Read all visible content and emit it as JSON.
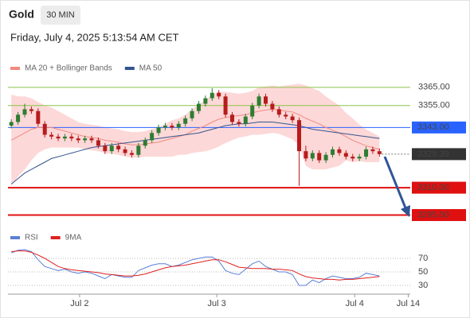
{
  "header": {
    "symbol": "Gold",
    "interval": "30 MIN",
    "timestamp": "Friday, July 4, 2025 5:13:54 AM CET"
  },
  "chart_data": [
    {
      "type": "candlestick",
      "x": [
        0,
        1,
        2,
        3,
        4,
        5,
        6,
        7,
        8,
        9,
        10,
        11,
        12,
        13,
        14,
        15,
        16,
        17,
        18,
        19,
        20,
        21,
        22,
        23,
        24,
        25,
        26,
        27,
        28,
        29,
        30,
        31,
        32,
        33,
        34,
        35,
        36,
        37,
        38,
        39,
        40,
        41,
        42,
        43,
        44,
        45,
        46,
        47,
        48,
        49,
        50,
        51,
        52,
        53,
        54,
        55
      ],
      "open": [
        3344,
        3346,
        3350,
        3353,
        3352,
        3345,
        3339,
        3338,
        3337,
        3338,
        3337,
        3336,
        3337,
        3336,
        3333,
        3330,
        3333,
        3331,
        3329,
        3328,
        3333,
        3336,
        3340,
        3343,
        3344,
        3343,
        3345,
        3348,
        3352,
        3356,
        3359,
        3362,
        3360,
        3350,
        3346,
        3345,
        3349,
        3355,
        3360,
        3356,
        3353,
        3350,
        3349,
        3347,
        3330,
        3326,
        3329,
        3325,
        3328,
        3331,
        3329,
        3327,
        3326,
        3327,
        3331,
        3330
      ],
      "high": [
        3347.5,
        3351.5,
        3356,
        3354.5,
        3353.5,
        3346.5,
        3340.5,
        3339.5,
        3339.5,
        3339.5,
        3338.5,
        3338.5,
        3338.5,
        3337.5,
        3334.5,
        3334.5,
        3334.5,
        3332.5,
        3330.5,
        3334.5,
        3337.5,
        3341.5,
        3344.5,
        3345.5,
        3345.5,
        3346.5,
        3349.5,
        3353.5,
        3357.5,
        3360.5,
        3364.5,
        3363.5,
        3361.5,
        3351.5,
        3347.5,
        3350.5,
        3356.5,
        3361.5,
        3361.5,
        3357.5,
        3354.5,
        3351.5,
        3350.5,
        3348.5,
        3333,
        3330.5,
        3330.5,
        3329.5,
        3332.5,
        3332.5,
        3330.5,
        3328.5,
        3328.5,
        3332.5,
        3332.5,
        3331.5
      ],
      "low": [
        3342.5,
        3344.5,
        3348.5,
        3350.5,
        3343.5,
        3337.5,
        3336.5,
        3335.5,
        3335.5,
        3335.5,
        3334.5,
        3334.5,
        3334.5,
        3331.5,
        3328.5,
        3328.5,
        3329.5,
        3327.5,
        3326.5,
        3326.5,
        3331.5,
        3334.5,
        3338.5,
        3341.5,
        3341.5,
        3341.5,
        3343.5,
        3346.5,
        3350.5,
        3354.5,
        3357.5,
        3358.5,
        3348.5,
        3344.5,
        3343.5,
        3343.5,
        3347.5,
        3353.5,
        3354.5,
        3351.5,
        3348.5,
        3347.5,
        3345.5,
        3311,
        3324.5,
        3324.5,
        3323.5,
        3323.5,
        3326.5,
        3327.5,
        3325.5,
        3324.5,
        3324.5,
        3325.5,
        3328.5,
        3327
      ],
      "close": [
        3346,
        3350,
        3353,
        3352,
        3345,
        3339,
        3338,
        3337,
        3338,
        3337,
        3336,
        3337,
        3336,
        3333,
        3330,
        3333,
        3331,
        3329,
        3328,
        3333,
        3336,
        3340,
        3343,
        3344,
        3343,
        3345,
        3348,
        3352,
        3356,
        3359,
        3362,
        3360,
        3350,
        3346,
        3345,
        3349,
        3355,
        3360,
        3356,
        3353,
        3350,
        3349,
        3347,
        3330,
        3326,
        3329,
        3325,
        3328,
        3331,
        3329,
        3327,
        3326,
        3327,
        3331,
        3330,
        3328.39
      ],
      "up_color": "#2e7d32",
      "down_color": "#b71c1c",
      "last_price_color": "#333333",
      "series": [
        {
          "name": "MA 20 + Bollinger Bands",
          "color": "#f08a80",
          "band_color": "#fdd8d8",
          "values": [
            3336,
            3338,
            3340,
            3342,
            3343,
            3343,
            3343,
            3342,
            3341,
            3340,
            3339,
            3338,
            3337.5,
            3337,
            3336,
            3335.5,
            3335,
            3334,
            3333.5,
            3333.5,
            3334,
            3334.5,
            3335,
            3336,
            3337,
            3338,
            3339,
            3341,
            3342.5,
            3344,
            3346,
            3347.5,
            3348.5,
            3349,
            3349.5,
            3350,
            3351,
            3352,
            3352.5,
            3353,
            3352.5,
            3352,
            3351.5,
            3350,
            3348,
            3346.5,
            3345,
            3343,
            3341.5,
            3340,
            3338,
            3336,
            3334.5,
            3333,
            3332,
            3331
          ],
          "upper": [
            3361,
            3360,
            3360,
            3359,
            3357,
            3355,
            3354,
            3352,
            3350,
            3348,
            3346,
            3345,
            3344.5,
            3344,
            3343,
            3342.5,
            3342,
            3341,
            3340.5,
            3340.5,
            3341,
            3342,
            3343,
            3345,
            3347,
            3348,
            3350,
            3353,
            3355.5,
            3358,
            3361,
            3362.5,
            3362.5,
            3362,
            3361.5,
            3362,
            3363,
            3365,
            3365.5,
            3366,
            3365.5,
            3366,
            3366.5,
            3367,
            3366,
            3364.5,
            3363,
            3360,
            3357.5,
            3355,
            3351,
            3348,
            3344.5,
            3342,
            3340,
            3338
          ],
          "lower": [
            3311,
            3316,
            3320,
            3325,
            3329,
            3331,
            3332,
            3332,
            3332,
            3332,
            3332,
            3331,
            3330.5,
            3330,
            3329,
            3328.5,
            3328,
            3327,
            3326.5,
            3326.5,
            3327,
            3327,
            3327,
            3327,
            3327,
            3328,
            3328,
            3329,
            3329.5,
            3330,
            3331,
            3332.5,
            3334.5,
            3336,
            3337.5,
            3338,
            3339,
            3339,
            3339.5,
            3340,
            3339.5,
            3338,
            3336.5,
            3333,
            3322,
            3320,
            3320,
            3320,
            3321,
            3322,
            3325,
            3324,
            3324.5,
            3324,
            3324,
            3324
          ]
        },
        {
          "name": "MA 50",
          "color": "#34548f",
          "values": [
            3312,
            3315,
            3318,
            3320,
            3322,
            3324,
            3326,
            3327,
            3328,
            3329,
            3330,
            3331,
            3332,
            3332.5,
            3333,
            3333.5,
            3334,
            3334.5,
            3335,
            3335.5,
            3336,
            3336.5,
            3337,
            3337.5,
            3338,
            3338.5,
            3339,
            3339.5,
            3340,
            3341,
            3342,
            3343,
            3344,
            3344.5,
            3345,
            3345,
            3345.5,
            3346,
            3346,
            3346,
            3345.5,
            3345,
            3344.5,
            3344,
            3343,
            3342,
            3341.5,
            3341,
            3340.5,
            3340,
            3339.5,
            3339,
            3338.5,
            3338,
            3337.5,
            3337
          ]
        }
      ],
      "levels": [
        {
          "value": 3365,
          "label": "3365.00",
          "color": "#8bc34a",
          "boxed": false
        },
        {
          "value": 3355,
          "label": "3355.00",
          "color": "#8bc34a",
          "boxed": false
        },
        {
          "value": 3343,
          "label": "3343.00",
          "color": "#2962ff",
          "boxed": true
        },
        {
          "value": 3310,
          "label": "3310.00",
          "color": "#e01010",
          "boxed": true
        },
        {
          "value": 3295,
          "label": "3295.00",
          "color": "#e01010",
          "boxed": true
        }
      ],
      "xlim": [
        -0.5,
        59.6
      ],
      "ylim": [
        3290,
        3378
      ]
    },
    {
      "type": "line",
      "x": [
        0,
        1,
        2,
        3,
        4,
        5,
        6,
        7,
        8,
        9,
        10,
        11,
        12,
        13,
        14,
        15,
        16,
        17,
        18,
        19,
        20,
        21,
        22,
        23,
        24,
        25,
        26,
        27,
        28,
        29,
        30,
        31,
        32,
        33,
        34,
        35,
        36,
        37,
        38,
        39,
        40,
        41,
        42,
        43,
        44,
        45,
        46,
        47,
        48,
        49,
        50,
        51,
        52,
        53,
        54,
        55
      ],
      "series": [
        {
          "name": "RSI",
          "color": "#5b7fd6",
          "values": [
            78,
            82,
            83,
            80,
            68,
            58,
            55,
            52,
            54,
            50,
            48,
            50,
            48,
            44,
            40,
            46,
            44,
            42,
            42,
            52,
            56,
            60,
            62,
            62,
            58,
            60,
            64,
            68,
            70,
            72,
            72,
            66,
            52,
            48,
            46,
            54,
            62,
            66,
            58,
            54,
            50,
            50,
            46,
            30,
            30,
            38,
            34,
            40,
            44,
            42,
            40,
            40,
            42,
            48,
            46,
            44
          ]
        },
        {
          "name": "9MA",
          "color": "#e02020",
          "values": [
            80,
            81,
            81,
            79,
            75,
            70,
            64,
            58,
            55,
            53,
            52,
            51,
            50,
            49,
            47,
            46,
            45,
            44,
            44,
            45,
            47,
            50,
            53,
            56,
            58,
            59,
            60,
            62,
            64,
            66,
            68,
            68,
            65,
            61,
            57,
            56,
            55,
            55,
            55,
            54,
            54,
            53,
            52,
            47,
            43,
            41,
            40,
            39,
            39,
            38,
            39,
            39,
            40,
            41,
            42,
            43
          ]
        }
      ],
      "xlim": [
        -0.5,
        59.6
      ],
      "xticks": [
        {
          "value": 10.2,
          "label": "Jul 2"
        },
        {
          "value": 30.7,
          "label": "Jul 3"
        },
        {
          "value": 51.3,
          "label": "Jul 4"
        },
        {
          "value": 59.3,
          "label": "Jul 14"
        }
      ],
      "ylim": [
        20,
        90
      ],
      "yticks": [
        30,
        50,
        70
      ]
    }
  ]
}
